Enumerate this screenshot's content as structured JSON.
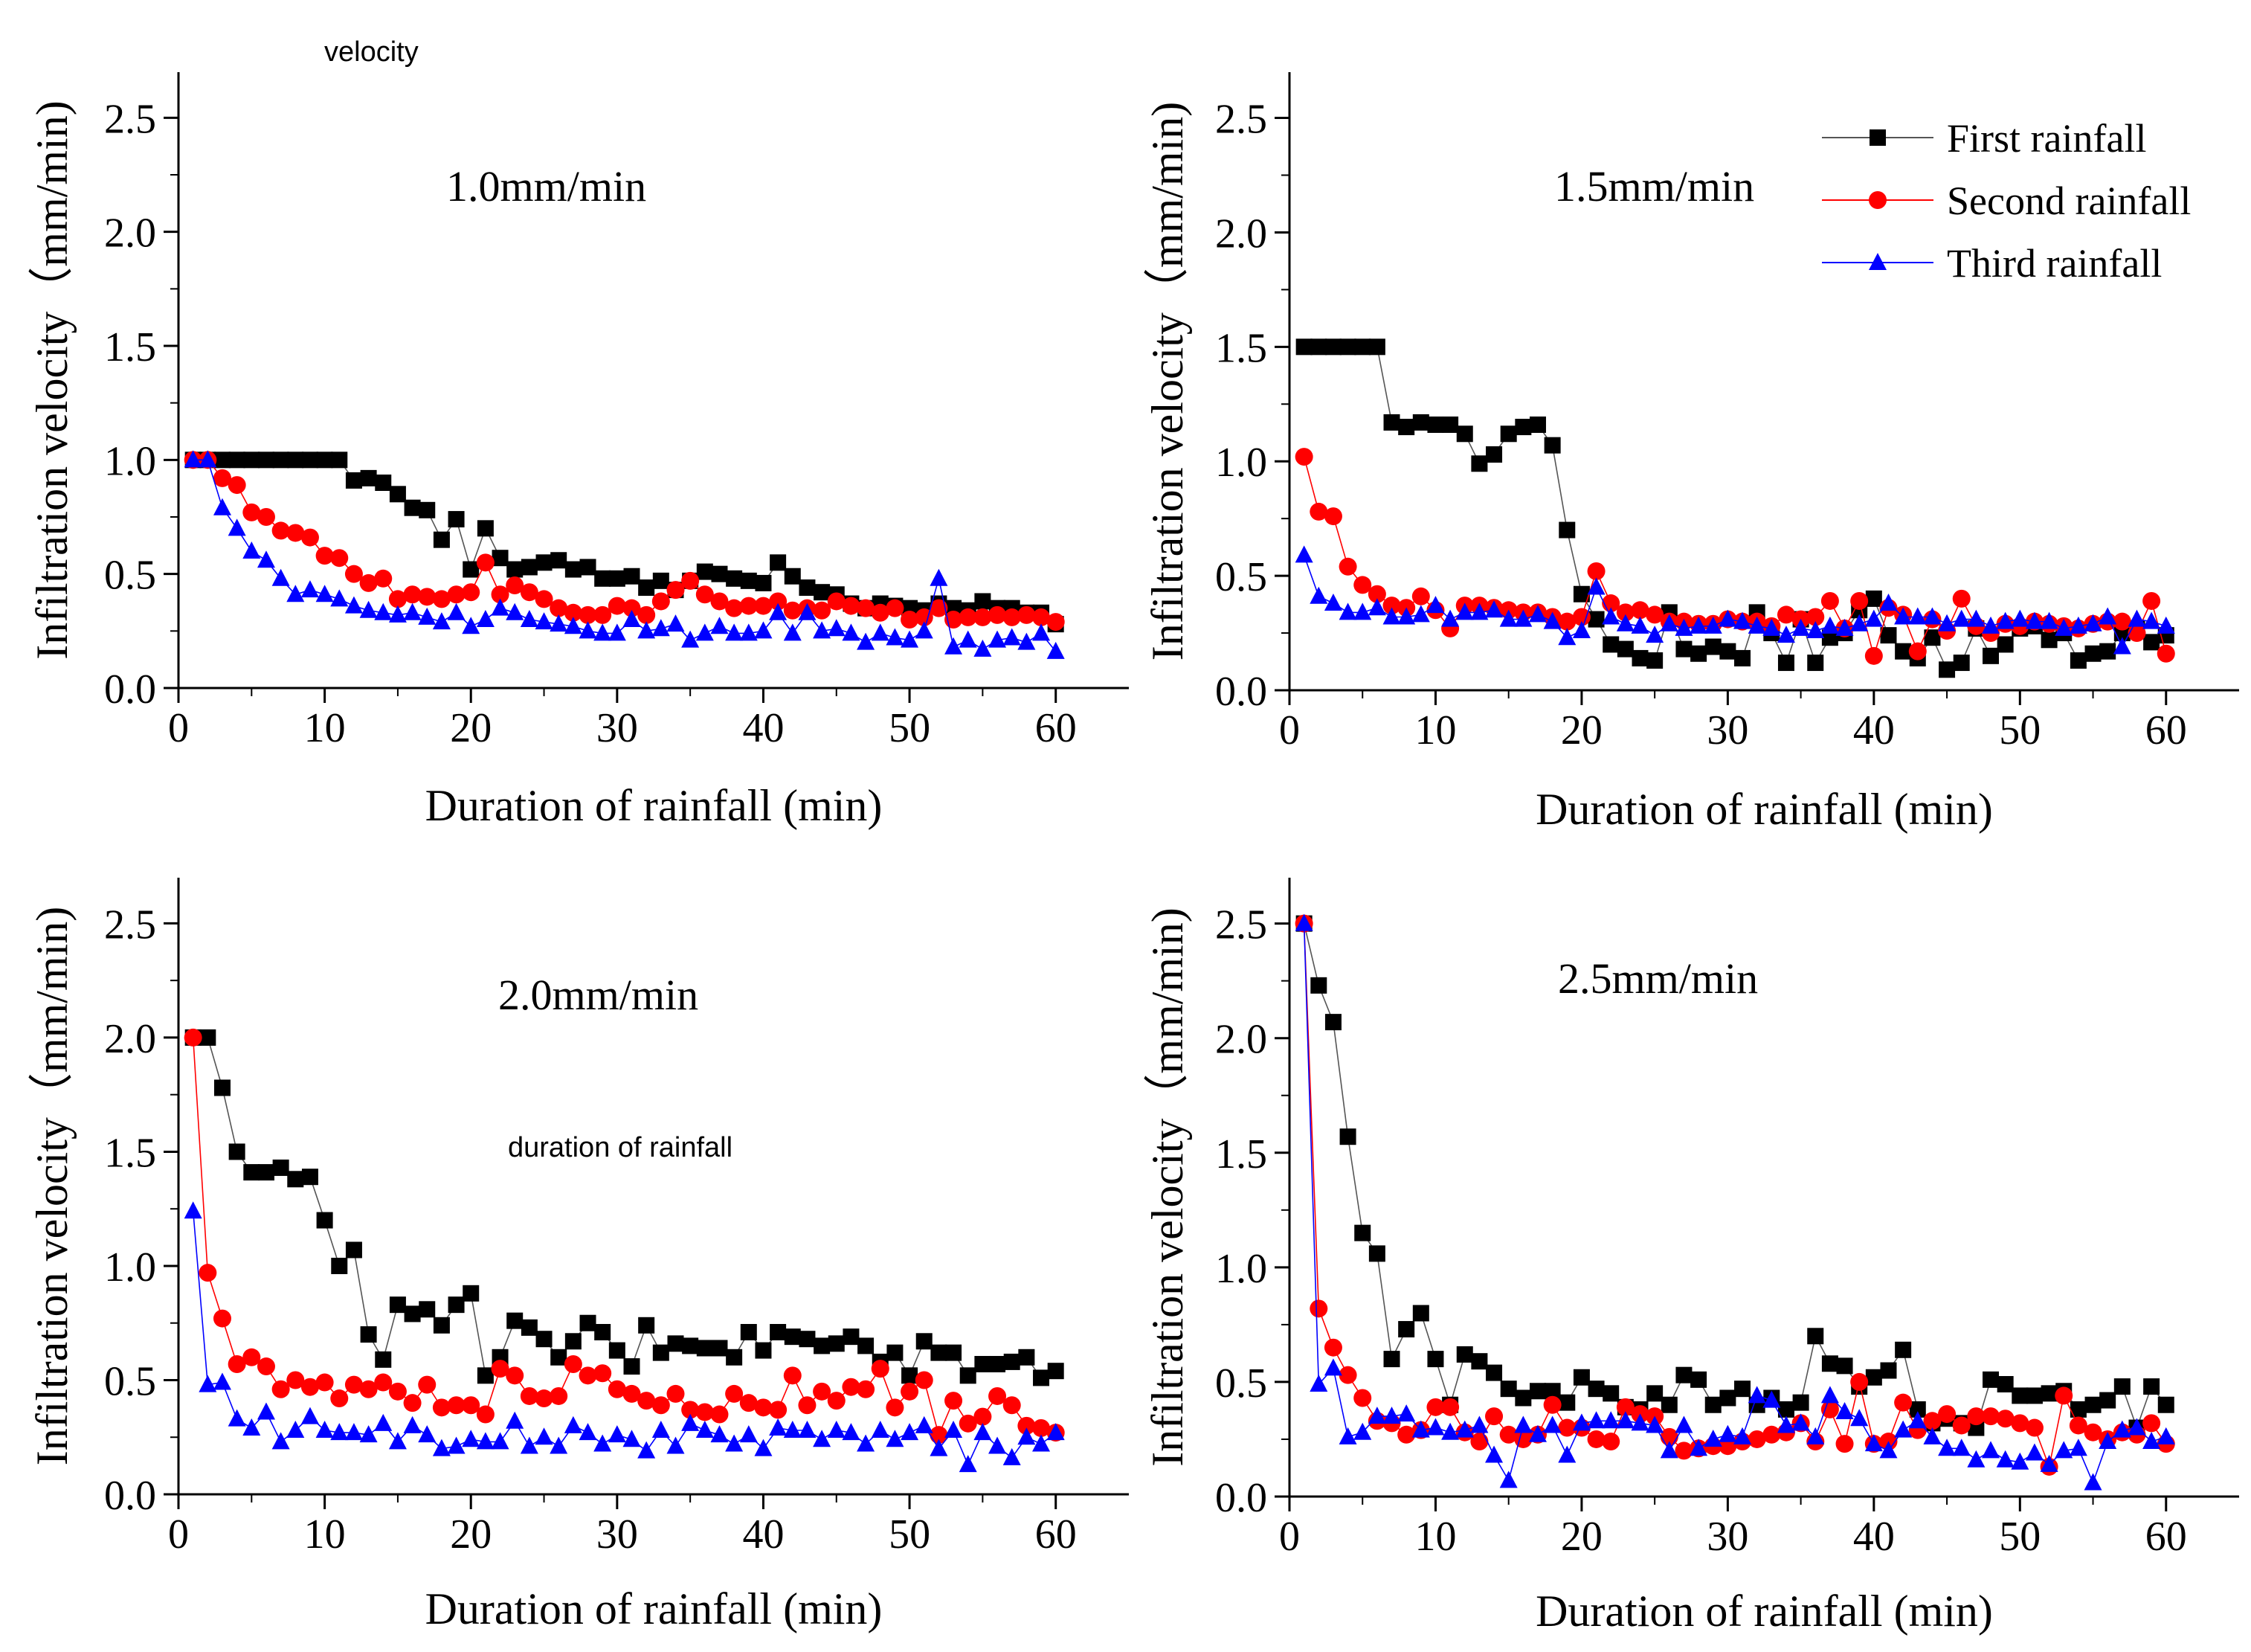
{
  "annotations": {
    "top_note": "velocity",
    "middle_note": "duration of rainfall"
  },
  "legend": [
    {
      "label": "First rainfall",
      "marker": "square",
      "color": "#000000",
      "line_color": "#555555"
    },
    {
      "label": "Second rainfall",
      "marker": "circle",
      "color": "#ff0000",
      "line_color": "#ff0000"
    },
    {
      "label": "Third rainfall",
      "marker": "triangle",
      "color": "#0000ff",
      "line_color": "#0000ff"
    }
  ],
  "chart_data": [
    {
      "type": "line",
      "title": "1.0mm/min",
      "xlabel": "Duration of rainfall  (min)",
      "ylabel": "Infiltration velocity（mm/min)",
      "xlim": [
        0,
        65
      ],
      "ylim": [
        0,
        2.7
      ],
      "xticks": [
        0,
        10,
        20,
        30,
        40,
        50,
        60
      ],
      "yticks": [
        0.0,
        0.5,
        1.0,
        1.5,
        2.0,
        2.5
      ],
      "ytick_labels": [
        "0.0",
        "0.5",
        "1.0",
        "1.5",
        "2.0",
        "2.5"
      ],
      "series": [
        {
          "name": "First rainfall",
          "values": [
            1.0,
            1.0,
            1.0,
            1.0,
            1.0,
            1.0,
            1.0,
            1.0,
            1.0,
            1.0,
            1.0,
            0.91,
            0.92,
            0.9,
            0.85,
            0.79,
            0.78,
            0.65,
            0.74,
            0.52,
            0.7,
            0.57,
            0.52,
            0.53,
            0.55,
            0.56,
            0.52,
            0.53,
            0.48,
            0.48,
            0.49,
            0.44,
            0.47,
            0.43,
            0.47,
            0.51,
            0.5,
            0.48,
            0.47,
            0.46,
            0.55,
            0.49,
            0.44,
            0.42,
            0.41,
            0.37,
            0.35,
            0.37,
            0.36,
            0.35,
            0.34,
            0.37,
            0.35,
            0.34,
            0.38,
            0.35,
            0.35,
            0.33,
            0.33,
            0.28
          ]
        },
        {
          "name": "Second rainfall",
          "values": [
            1.0,
            1.0,
            0.92,
            0.89,
            0.77,
            0.75,
            0.69,
            0.68,
            0.66,
            0.58,
            0.57,
            0.5,
            0.46,
            0.48,
            0.39,
            0.41,
            0.4,
            0.39,
            0.41,
            0.42,
            0.55,
            0.41,
            0.45,
            0.42,
            0.39,
            0.35,
            0.33,
            0.32,
            0.32,
            0.36,
            0.35,
            0.32,
            0.38,
            0.43,
            0.47,
            0.41,
            0.38,
            0.35,
            0.36,
            0.36,
            0.38,
            0.34,
            0.35,
            0.34,
            0.38,
            0.36,
            0.35,
            0.33,
            0.35,
            0.3,
            0.31,
            0.35,
            0.3,
            0.31,
            0.31,
            0.32,
            0.31,
            0.32,
            0.31,
            0.29
          ]
        },
        {
          "name": "Third rainfall",
          "values": [
            1.0,
            1.0,
            0.79,
            0.7,
            0.6,
            0.56,
            0.48,
            0.41,
            0.43,
            0.41,
            0.39,
            0.36,
            0.34,
            0.33,
            0.32,
            0.33,
            0.31,
            0.29,
            0.33,
            0.27,
            0.3,
            0.35,
            0.33,
            0.3,
            0.29,
            0.28,
            0.27,
            0.25,
            0.24,
            0.24,
            0.3,
            0.25,
            0.26,
            0.28,
            0.21,
            0.24,
            0.27,
            0.24,
            0.24,
            0.25,
            0.33,
            0.24,
            0.33,
            0.25,
            0.26,
            0.24,
            0.2,
            0.24,
            0.22,
            0.21,
            0.25,
            0.48,
            0.18,
            0.21,
            0.17,
            0.21,
            0.22,
            0.2,
            0.24,
            0.16
          ]
        }
      ]
    },
    {
      "type": "line",
      "title": "1.5mm/min",
      "xlabel": "Duration of rainfall  (min)",
      "ylabel": "Infiltration velocity（mm/min)",
      "xlim": [
        0,
        65
      ],
      "ylim": [
        0,
        2.7
      ],
      "xticks": [
        0,
        10,
        20,
        30,
        40,
        50,
        60
      ],
      "yticks": [
        0.0,
        0.5,
        1.0,
        1.5,
        2.0,
        2.5
      ],
      "ytick_labels": [
        "0.0",
        "0.5",
        "1.0",
        "1.5",
        "2.0",
        "2.5"
      ],
      "series": [
        {
          "name": "First rainfall",
          "values": [
            1.5,
            1.5,
            1.5,
            1.5,
            1.5,
            1.5,
            1.17,
            1.15,
            1.17,
            1.16,
            1.16,
            1.12,
            0.99,
            1.03,
            1.12,
            1.15,
            1.16,
            1.07,
            0.7,
            0.42,
            0.31,
            0.2,
            0.18,
            0.14,
            0.13,
            0.34,
            0.18,
            0.16,
            0.19,
            0.17,
            0.14,
            0.34,
            0.25,
            0.12,
            0.31,
            0.12,
            0.23,
            0.25,
            0.35,
            0.4,
            0.24,
            0.17,
            0.14,
            0.23,
            0.09,
            0.12,
            0.27,
            0.15,
            0.2,
            0.27,
            0.28,
            0.22,
            0.25,
            0.13,
            0.16,
            0.17,
            0.25,
            0.27,
            0.21,
            0.24
          ]
        },
        {
          "name": "Second rainfall",
          "values": [
            1.02,
            0.78,
            0.76,
            0.54,
            0.46,
            0.42,
            0.37,
            0.36,
            0.41,
            0.35,
            0.27,
            0.37,
            0.37,
            0.36,
            0.35,
            0.34,
            0.34,
            0.32,
            0.3,
            0.32,
            0.52,
            0.38,
            0.34,
            0.35,
            0.33,
            0.3,
            0.3,
            0.29,
            0.29,
            0.31,
            0.3,
            0.3,
            0.28,
            0.33,
            0.31,
            0.32,
            0.39,
            0.27,
            0.39,
            0.15,
            0.36,
            0.33,
            0.17,
            0.31,
            0.26,
            0.4,
            0.28,
            0.25,
            0.29,
            0.28,
            0.3,
            0.29,
            0.28,
            0.27,
            0.29,
            0.3,
            0.3,
            0.25,
            0.39,
            0.16
          ]
        },
        {
          "name": "Third rainfall",
          "values": [
            0.59,
            0.41,
            0.38,
            0.34,
            0.34,
            0.36,
            0.32,
            0.32,
            0.33,
            0.37,
            0.31,
            0.34,
            0.34,
            0.35,
            0.31,
            0.31,
            0.33,
            0.3,
            0.23,
            0.26,
            0.45,
            0.32,
            0.29,
            0.28,
            0.24,
            0.29,
            0.27,
            0.28,
            0.28,
            0.31,
            0.3,
            0.28,
            0.27,
            0.24,
            0.27,
            0.26,
            0.28,
            0.27,
            0.29,
            0.31,
            0.38,
            0.32,
            0.32,
            0.32,
            0.29,
            0.31,
            0.31,
            0.28,
            0.3,
            0.31,
            0.3,
            0.3,
            0.27,
            0.28,
            0.29,
            0.32,
            0.19,
            0.31,
            0.3,
            0.28
          ]
        }
      ]
    },
    {
      "type": "line",
      "title": "2.0mm/min",
      "xlabel": "Duration of rainfall  (min)",
      "ylabel": "Infiltration velocity（mm/min)",
      "xlim": [
        0,
        65
      ],
      "ylim": [
        0,
        2.7
      ],
      "xticks": [
        0,
        10,
        20,
        30,
        40,
        50,
        60
      ],
      "yticks": [
        0.0,
        0.5,
        1.0,
        1.5,
        2.0,
        2.5
      ],
      "ytick_labels": [
        "0.0",
        "0.5",
        "1.0",
        "1.5",
        "2.0",
        "2.5"
      ],
      "series": [
        {
          "name": "First rainfall",
          "values": [
            2.0,
            2.0,
            1.78,
            1.5,
            1.41,
            1.41,
            1.43,
            1.38,
            1.39,
            1.2,
            1.0,
            1.07,
            0.7,
            0.59,
            0.83,
            0.79,
            0.81,
            0.74,
            0.83,
            0.88,
            0.52,
            0.6,
            0.76,
            0.73,
            0.68,
            0.6,
            0.67,
            0.75,
            0.71,
            0.63,
            0.56,
            0.74,
            0.62,
            0.66,
            0.65,
            0.64,
            0.64,
            0.6,
            0.71,
            0.63,
            0.71,
            0.69,
            0.68,
            0.65,
            0.66,
            0.69,
            0.65,
            0.58,
            0.62,
            0.52,
            0.67,
            0.62,
            0.62,
            0.52,
            0.57,
            0.57,
            0.58,
            0.6,
            0.51,
            0.54
          ]
        },
        {
          "name": "Second rainfall",
          "values": [
            2.0,
            0.97,
            0.77,
            0.57,
            0.6,
            0.56,
            0.46,
            0.5,
            0.47,
            0.49,
            0.42,
            0.48,
            0.46,
            0.49,
            0.45,
            0.4,
            0.48,
            0.38,
            0.39,
            0.39,
            0.35,
            0.55,
            0.52,
            0.43,
            0.42,
            0.43,
            0.57,
            0.52,
            0.53,
            0.46,
            0.44,
            0.41,
            0.39,
            0.44,
            0.37,
            0.36,
            0.35,
            0.44,
            0.4,
            0.38,
            0.37,
            0.52,
            0.39,
            0.45,
            0.41,
            0.47,
            0.46,
            0.55,
            0.38,
            0.45,
            0.5,
            0.26,
            0.41,
            0.31,
            0.34,
            0.43,
            0.39,
            0.3,
            0.29,
            0.27
          ]
        },
        {
          "name": "Third rainfall",
          "values": [
            1.24,
            0.48,
            0.49,
            0.33,
            0.29,
            0.36,
            0.23,
            0.28,
            0.34,
            0.28,
            0.27,
            0.27,
            0.26,
            0.31,
            0.23,
            0.3,
            0.26,
            0.2,
            0.21,
            0.24,
            0.23,
            0.23,
            0.32,
            0.21,
            0.25,
            0.21,
            0.3,
            0.27,
            0.22,
            0.26,
            0.24,
            0.19,
            0.28,
            0.21,
            0.31,
            0.28,
            0.26,
            0.22,
            0.26,
            0.2,
            0.29,
            0.28,
            0.28,
            0.24,
            0.28,
            0.27,
            0.22,
            0.28,
            0.24,
            0.27,
            0.3,
            0.2,
            0.28,
            0.13,
            0.27,
            0.21,
            0.16,
            0.25,
            0.22,
            0.27
          ]
        }
      ]
    },
    {
      "type": "line",
      "title": "2.5mm/min",
      "xlabel": "Duration of rainfall  (min)",
      "ylabel": "Infiltration velocity（mm/min)",
      "xlim": [
        0,
        65
      ],
      "ylim": [
        0,
        2.7
      ],
      "xticks": [
        0,
        10,
        20,
        30,
        40,
        50,
        60
      ],
      "yticks": [
        0.0,
        0.5,
        1.0,
        1.5,
        2.0,
        2.5
      ],
      "ytick_labels": [
        "0.0",
        "0.5",
        "1.0",
        "1.5",
        "2.0",
        "2.5"
      ],
      "series": [
        {
          "name": "First rainfall",
          "values": [
            2.5,
            2.23,
            2.07,
            1.57,
            1.15,
            1.06,
            0.6,
            0.73,
            0.8,
            0.6,
            0.4,
            0.62,
            0.59,
            0.54,
            0.47,
            0.43,
            0.46,
            0.46,
            0.41,
            0.52,
            0.47,
            0.45,
            0.39,
            0.38,
            0.45,
            0.4,
            0.53,
            0.51,
            0.4,
            0.43,
            0.47,
            0.4,
            0.43,
            0.38,
            0.41,
            0.7,
            0.58,
            0.57,
            0.48,
            0.52,
            0.55,
            0.64,
            0.38,
            0.32,
            0.34,
            0.32,
            0.3,
            0.51,
            0.49,
            0.44,
            0.44,
            0.45,
            0.46,
            0.38,
            0.4,
            0.42,
            0.48,
            0.3,
            0.48,
            0.4
          ]
        },
        {
          "name": "Second rainfall",
          "values": [
            2.5,
            0.82,
            0.65,
            0.53,
            0.43,
            0.33,
            0.32,
            0.27,
            0.29,
            0.39,
            0.39,
            0.28,
            0.24,
            0.35,
            0.27,
            0.25,
            0.27,
            0.4,
            0.3,
            0.3,
            0.25,
            0.24,
            0.39,
            0.36,
            0.35,
            0.26,
            0.2,
            0.21,
            0.22,
            0.22,
            0.24,
            0.25,
            0.27,
            0.28,
            0.32,
            0.24,
            0.38,
            0.23,
            0.5,
            0.23,
            0.24,
            0.41,
            0.29,
            0.33,
            0.36,
            0.31,
            0.35,
            0.35,
            0.34,
            0.32,
            0.3,
            0.13,
            0.44,
            0.31,
            0.28,
            0.25,
            0.28,
            0.27,
            0.32,
            0.23
          ]
        },
        {
          "name": "Third rainfall",
          "values": [
            2.5,
            0.49,
            0.56,
            0.26,
            0.28,
            0.35,
            0.35,
            0.36,
            0.29,
            0.3,
            0.28,
            0.29,
            0.31,
            0.18,
            0.07,
            0.31,
            0.27,
            0.31,
            0.18,
            0.32,
            0.33,
            0.33,
            0.33,
            0.32,
            0.31,
            0.2,
            0.31,
            0.21,
            0.25,
            0.27,
            0.26,
            0.44,
            0.42,
            0.31,
            0.32,
            0.26,
            0.44,
            0.37,
            0.34,
            0.23,
            0.2,
            0.29,
            0.33,
            0.26,
            0.21,
            0.21,
            0.16,
            0.2,
            0.16,
            0.15,
            0.19,
            0.14,
            0.2,
            0.21,
            0.06,
            0.24,
            0.29,
            0.3,
            0.24,
            0.26
          ]
        }
      ]
    }
  ]
}
